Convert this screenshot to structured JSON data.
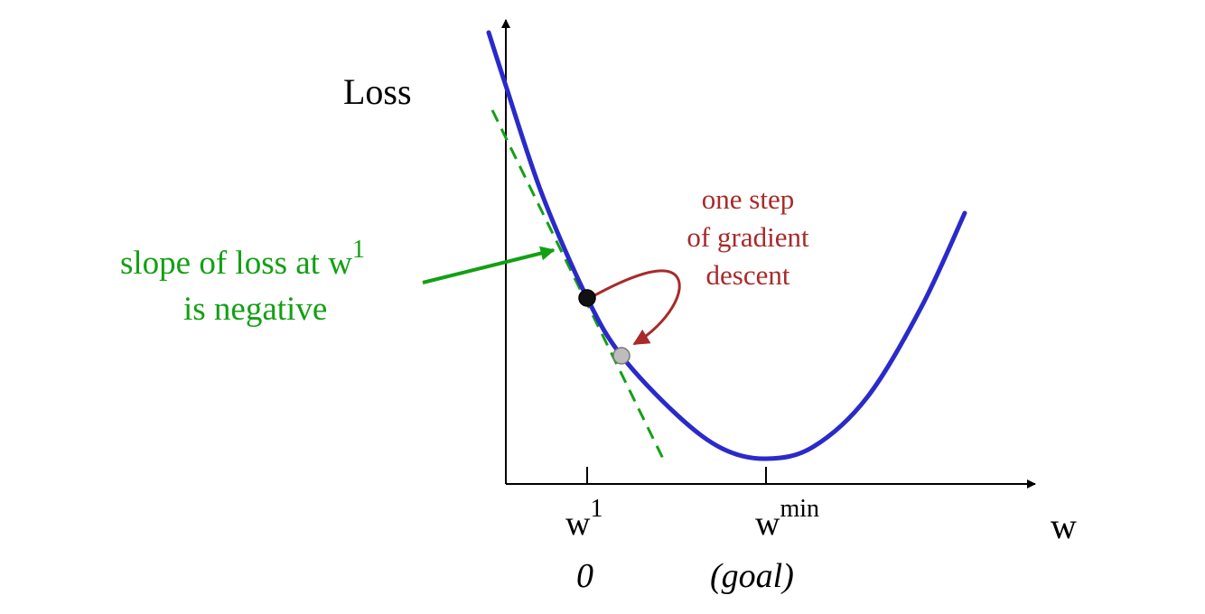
{
  "axes": {
    "y_label": "Loss",
    "x_label": "w"
  },
  "ticks": {
    "w1": {
      "base": "w",
      "sup": "1",
      "below": "0"
    },
    "wmin": {
      "base": "w",
      "sup": "min",
      "below": "(goal)"
    }
  },
  "annotations": {
    "slope": {
      "line1_text": "slope of loss at w",
      "line1_sup": "1",
      "line2": "is negative"
    },
    "step": {
      "line1": "one step",
      "line2": "of gradient",
      "line3": "descent"
    }
  },
  "colors": {
    "curve": "#2a2acb",
    "slope": "#13a013",
    "step": "#a82a2a",
    "axis": "#000000",
    "point_current": "#111111",
    "point_next": "#bdbdbd"
  }
}
